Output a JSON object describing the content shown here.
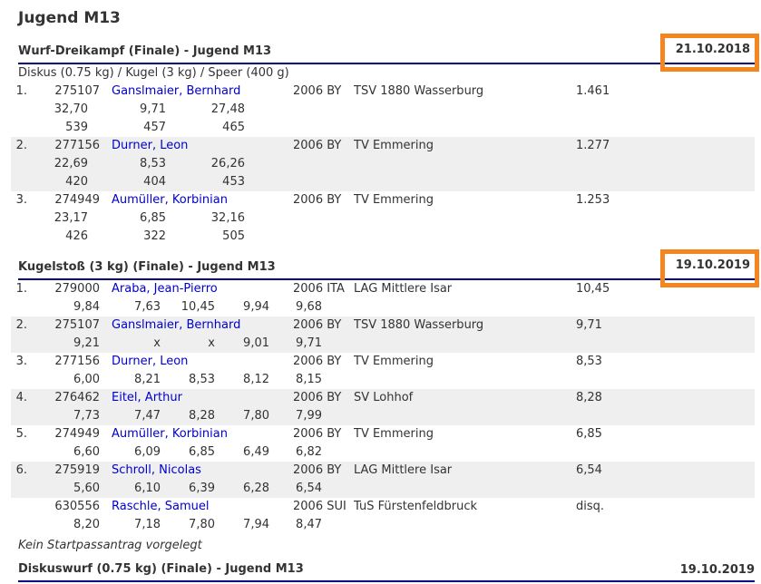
{
  "page_title": "Jugend M13",
  "colors": {
    "highlight_orange": "#F5861F",
    "rule_navy": "#000087",
    "link_blue": "#0000CC",
    "text": "#333333",
    "row_alt_gray": "#EFEFEF"
  },
  "sections": [
    {
      "title": "Wurf-Dreikampf (Finale) - Jugend M13",
      "date": "21.10.2018",
      "date_highlighted": true,
      "subtitle": "Diskus (0.75 kg)  /  Kugel (3 kg)  /  Speer (400 g)",
      "rows": [
        {
          "rank": "1.",
          "startnr": "275107",
          "name": "Ganslmaier, Bernhard",
          "year_nat": "2006 BY",
          "club": "TSV 1880 Wasserburg",
          "result": "1.461",
          "attempts": [
            "32,70",
            "9,71",
            "27,48"
          ],
          "points": [
            "539",
            "457",
            "465"
          ]
        },
        {
          "rank": "2.",
          "startnr": "277156",
          "name": "Durner, Leon",
          "year_nat": "2006 BY",
          "club": "TV Emmering",
          "result": "1.277",
          "attempts": [
            "22,69",
            "8,53",
            "26,26"
          ],
          "points": [
            "420",
            "404",
            "453"
          ]
        },
        {
          "rank": "3.",
          "startnr": "274949",
          "name": "Aumüller, Korbinian",
          "year_nat": "2006 BY",
          "club": "TV Emmering",
          "result": "1.253",
          "attempts": [
            "23,17",
            "6,85",
            "32,16"
          ],
          "points": [
            "426",
            "322",
            "505"
          ]
        }
      ]
    },
    {
      "title": "Kugelstoß (3 kg) (Finale) - Jugend M13",
      "date": "19.10.2019",
      "date_highlighted": true,
      "rows": [
        {
          "rank": "1.",
          "startnr": "279000",
          "name": "Araba, Jean-Pierro",
          "year_nat": "2006 ITA",
          "club": "LAG Mittlere Isar",
          "result": "10,45",
          "attempts": [
            "9,84",
            "7,63",
            "10,45",
            "9,94",
            "9,68"
          ]
        },
        {
          "rank": "2.",
          "startnr": "275107",
          "name": "Ganslmaier, Bernhard",
          "year_nat": "2006 BY",
          "club": "TSV 1880 Wasserburg",
          "result": "9,71",
          "attempts": [
            "9,21",
            "x",
            "x",
            "9,01",
            "9,71"
          ]
        },
        {
          "rank": "3.",
          "startnr": "277156",
          "name": "Durner, Leon",
          "year_nat": "2006 BY",
          "club": "TV Emmering",
          "result": "8,53",
          "attempts": [
            "6,00",
            "8,21",
            "8,53",
            "8,12",
            "8,15"
          ]
        },
        {
          "rank": "4.",
          "startnr": "276462",
          "name": "Eitel, Arthur",
          "year_nat": "2006 BY",
          "club": "SV Lohhof",
          "result": "8,28",
          "attempts": [
            "7,73",
            "7,47",
            "8,28",
            "7,80",
            "7,99"
          ]
        },
        {
          "rank": "5.",
          "startnr": "274949",
          "name": "Aumüller, Korbinian",
          "year_nat": "2006 BY",
          "club": "TV Emmering",
          "result": "6,85",
          "attempts": [
            "6,60",
            "6,09",
            "6,85",
            "6,49",
            "6,82"
          ]
        },
        {
          "rank": "6.",
          "startnr": "275919",
          "name": "Schroll, Nicolas",
          "year_nat": "2006 BY",
          "club": "LAG Mittlere Isar",
          "result": "6,54",
          "attempts": [
            "5,60",
            "6,10",
            "6,39",
            "6,28",
            "6,54"
          ]
        },
        {
          "rank": "",
          "startnr": "630556",
          "name": "Raschle, Samuel",
          "year_nat": "2006 SUI",
          "club": "TuS Fürstenfeldbruck",
          "result": "disq.",
          "attempts": [
            "8,20",
            "7,18",
            "7,80",
            "7,94",
            "8,47"
          ]
        }
      ],
      "note": "Kein Startpassantrag vorgelegt"
    },
    {
      "title": "Diskuswurf (0.75 kg) (Finale) - Jugend M13",
      "date": "19.10.2019",
      "date_highlighted": false,
      "rows": []
    }
  ]
}
